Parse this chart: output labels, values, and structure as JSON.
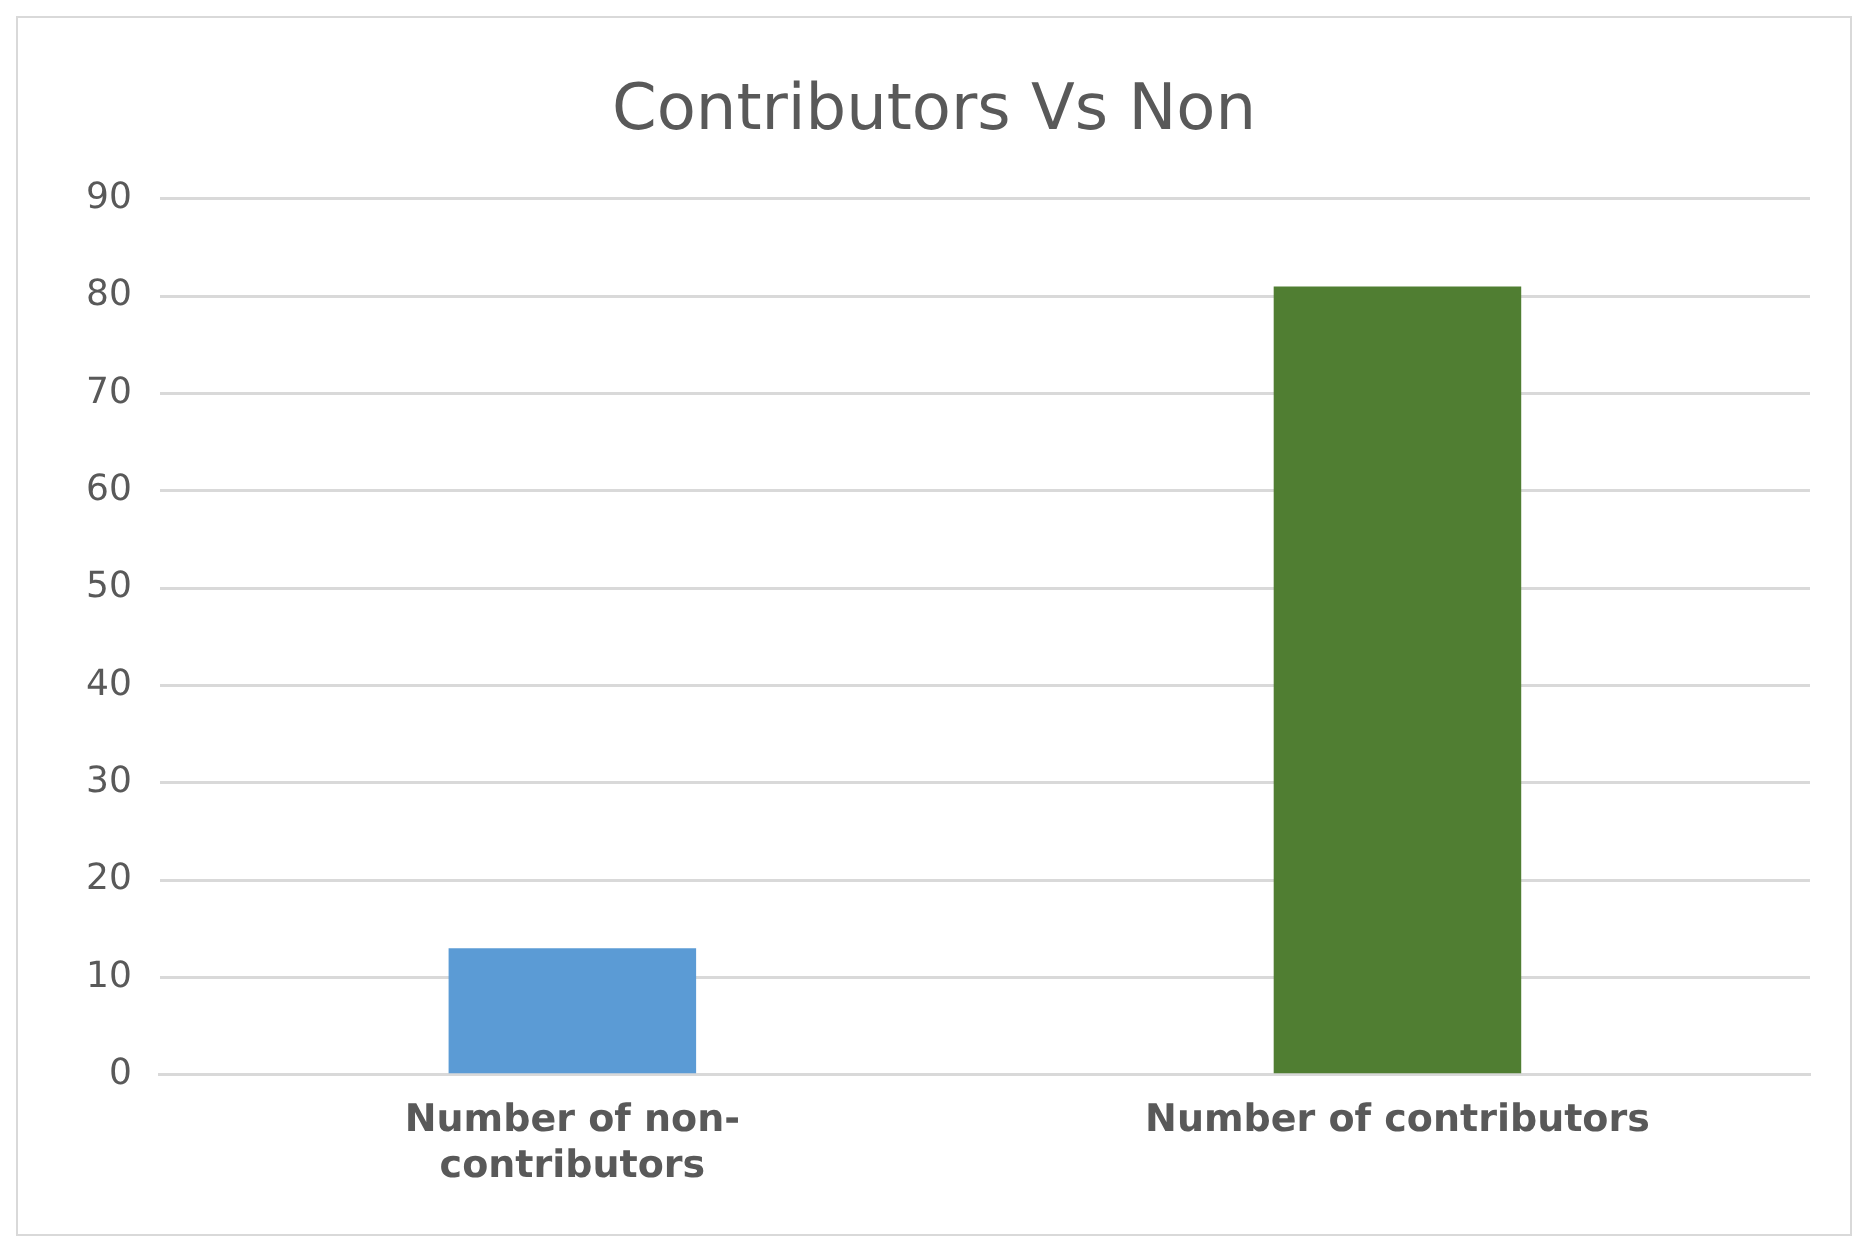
{
  "chart_data": {
    "type": "bar",
    "title": "Contributors Vs Non",
    "categories": [
      "Number of non-contributors",
      "Number of contributors"
    ],
    "values": [
      13,
      81
    ],
    "colors": [
      "#5b9bd5",
      "#507e32"
    ],
    "ylim": [
      0,
      90
    ],
    "yticks": [
      0,
      10,
      20,
      30,
      40,
      50,
      60,
      70,
      80,
      90
    ],
    "grid": "y",
    "legend": false
  }
}
